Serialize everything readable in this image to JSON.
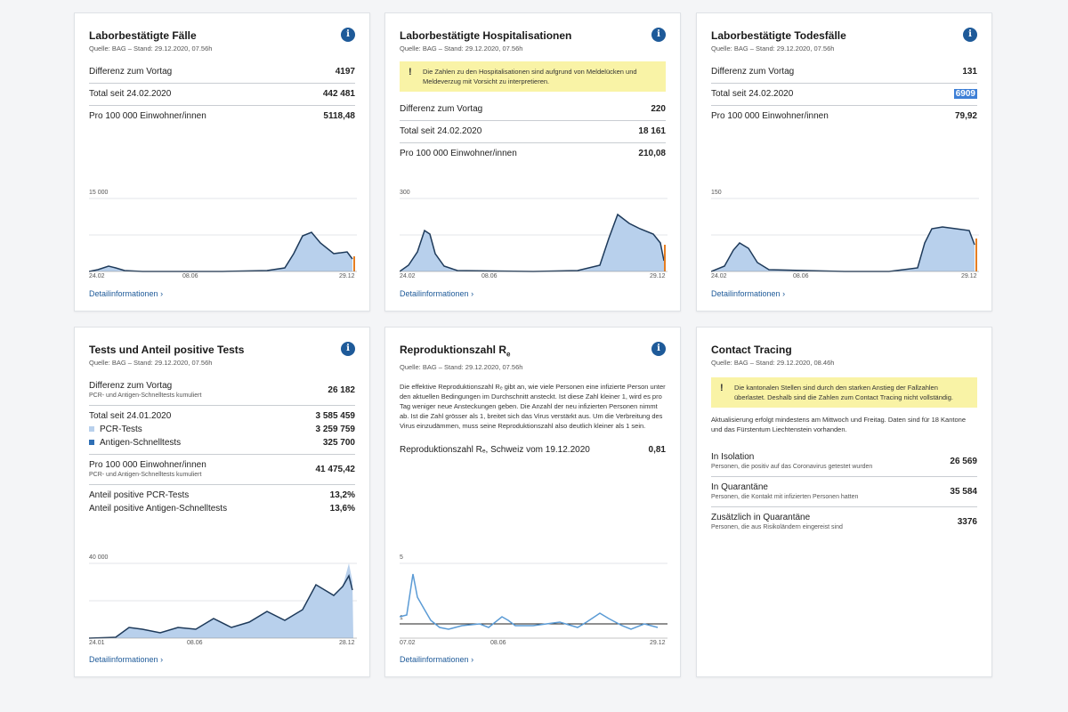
{
  "info_icon": "i",
  "detail_link": "Detailinformationen",
  "cards": {
    "faelle": {
      "title": "Laborbestätigte Fälle",
      "source": "Quelle: BAG – Stand: 29.12.2020, 07.56h",
      "rows": [
        {
          "label": "Differenz zum Vortag",
          "value": "4197"
        },
        {
          "label": "Total seit 24.02.2020",
          "value": "442 481"
        },
        {
          "label": "Pro 100 000 Einwohner/innen",
          "value": "5118,48"
        }
      ],
      "chart": {
        "ymax_label": "15 000",
        "x_labels": [
          "24.02",
          "08.06",
          "29.12"
        ]
      }
    },
    "hosp": {
      "title": "Laborbestätigte Hospitalisationen",
      "source": "Quelle: BAG – Stand: 29.12.2020, 07.56h",
      "note": "Die Zahlen zu den Hospitalisationen sind aufgrund von Meldelücken und Meldeverzug mit Vorsicht zu interpretieren.",
      "rows": [
        {
          "label": "Differenz zum Vortag",
          "value": "220"
        },
        {
          "label": "Total seit 24.02.2020",
          "value": "18 161"
        },
        {
          "label": "Pro 100 000 Einwohner/innen",
          "value": "210,08"
        }
      ],
      "chart": {
        "ymax_label": "300",
        "x_labels": [
          "24.02",
          "08.06",
          "29.12"
        ]
      }
    },
    "tod": {
      "title": "Laborbestätigte Todesfälle",
      "source": "Quelle: BAG – Stand: 29.12.2020, 07.56h",
      "rows": [
        {
          "label": "Differenz zum Vortag",
          "value": "131"
        },
        {
          "label": "Total seit 24.02.2020",
          "value": "6909"
        },
        {
          "label": "Pro 100 000 Einwohner/innen",
          "value": "79,92"
        }
      ],
      "chart": {
        "ymax_label": "150",
        "x_labels": [
          "24.02",
          "08.06",
          "29.12"
        ]
      }
    },
    "tests": {
      "title": "Tests und Anteil positive Tests",
      "source": "Quelle: BAG – Stand: 29.12.2020, 07.56h",
      "diff_label": "Differenz zum Vortag",
      "diff_sub": "PCR- und Antigen-Schnelltests kumuliert",
      "diff_value": "26 182",
      "total_label": "Total seit 24.01.2020",
      "total_value": "3 585 459",
      "pcr_label": "PCR-Tests",
      "pcr_value": "3 259 759",
      "antigen_label": "Antigen-Schnelltests",
      "antigen_value": "325 700",
      "per_label": "Pro 100 000 Einwohner/innen",
      "per_sub": "PCR- und Antigen-Schnelltests kumuliert",
      "per_value": "41 475,42",
      "pos_pcr_label": "Anteil positive PCR-Tests",
      "pos_pcr_value": "13,2%",
      "pos_ag_label": "Anteil positive Antigen-Schnelltests",
      "pos_ag_value": "13,6%",
      "chart": {
        "ymax_label": "40 000",
        "x_labels": [
          "24.01",
          "08.06",
          "28.12"
        ]
      }
    },
    "re": {
      "title_main": "Reproduktionszahl R",
      "title_sub": "e",
      "source": "Quelle: BAG – Stand: 29.12.2020, 07.56h",
      "description": "Die effektive Reproduktionszahl Rₑ gibt an, wie viele Personen eine infizierte Person unter den aktuellen Bedingungen im Durchschnitt ansteckt. Ist diese Zahl kleiner 1, wird es pro Tag weniger neue Ansteckungen geben. Die Anzahl der neu infizierten Personen nimmt ab. Ist die Zahl grösser als 1, breitet sich das Virus verstärkt aus. Um die Verbreitung des Virus einzudämmen, muss seine Reproduktionszahl also deutlich kleiner als 1 sein.",
      "row_label": "Reproduktionszahl Rₑ, Schweiz vom 19.12.2020",
      "row_value": "0,81",
      "chart": {
        "ymax_label": "5",
        "ref_label": "1",
        "x_labels": [
          "07.02",
          "08.06",
          "29.12"
        ]
      }
    },
    "ct": {
      "title": "Contact Tracing",
      "source": "Quelle: BAG – Stand: 29.12.2020, 08.46h",
      "note": "Die kantonalen Stellen sind durch den starken Anstieg der Fallzahlen überlastet. Deshalb sind die Zahlen zum Contact Tracing nicht vollständig.",
      "update_text": "Aktualisierung erfolgt mindestens am Mittwoch und Freitag. Daten sind für 18 Kantone und das Fürstentum Liechtenstein vorhanden.",
      "rows": [
        {
          "label": "In Isolation",
          "sub": "Personen, die positiv auf das Coronavirus getestet wurden",
          "value": "26 569"
        },
        {
          "label": "In Quarantäne",
          "sub": "Personen, die Kontakt mit infizierten Personen hatten",
          "value": "35 584"
        },
        {
          "label": "Zusätzlich in Quarantäne",
          "sub": "Personen, die aus Risikoländern eingereist sind",
          "value": "3376"
        }
      ]
    }
  }
}
